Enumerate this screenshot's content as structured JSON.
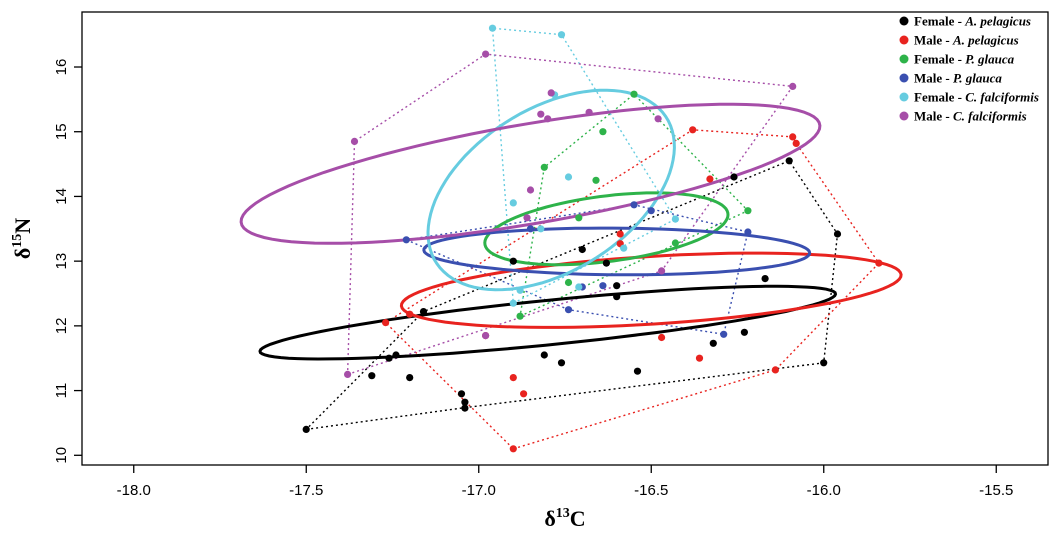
{
  "chart_data": {
    "type": "scatter",
    "title": "",
    "xlabel": "δ13C",
    "ylabel": "δ15N",
    "xlabel_parts": {
      "base": "δ",
      "sup": "13",
      "rest": "C"
    },
    "ylabel_parts": {
      "base": "δ",
      "sup": "15",
      "rest": "N"
    },
    "xlim": [
      -18.15,
      -15.35
    ],
    "ylim": [
      9.85,
      16.85
    ],
    "xticks": [
      -18.0,
      -17.5,
      -17.0,
      -16.5,
      -16.0,
      -15.5
    ],
    "xtick_labels": [
      "-18.0",
      "-17.5",
      "-17.0",
      "-16.5",
      "-16.0",
      "-15.5"
    ],
    "yticks": [
      10,
      11,
      12,
      13,
      14,
      15,
      16
    ],
    "ytick_labels": [
      "10",
      "11",
      "12",
      "13",
      "14",
      "15",
      "16"
    ],
    "grid": false,
    "legend_position": "top-right",
    "series": [
      {
        "name": "Female - A. pelagicus",
        "legend_prefix": "Female - ",
        "legend_italic": "A. pelagicus",
        "color": "#000000",
        "points": [
          [
            -17.5,
            10.4
          ],
          [
            -17.31,
            11.23
          ],
          [
            -17.26,
            11.5
          ],
          [
            -17.24,
            11.55
          ],
          [
            -17.2,
            11.2
          ],
          [
            -17.16,
            12.22
          ],
          [
            -17.05,
            10.95
          ],
          [
            -17.04,
            10.82
          ],
          [
            -17.04,
            10.73
          ],
          [
            -16.9,
            13.0
          ],
          [
            -16.81,
            11.55
          ],
          [
            -16.76,
            11.43
          ],
          [
            -16.7,
            13.18
          ],
          [
            -16.63,
            12.97
          ],
          [
            -16.6,
            12.62
          ],
          [
            -16.6,
            12.45
          ],
          [
            -16.54,
            11.3
          ],
          [
            -16.32,
            11.73
          ],
          [
            -16.26,
            14.3
          ],
          [
            -16.23,
            11.9
          ],
          [
            -16.17,
            12.73
          ],
          [
            -16.1,
            14.55
          ],
          [
            -16.0,
            11.43
          ],
          [
            -15.96,
            13.42
          ]
        ],
        "hull": [
          [
            -17.5,
            10.4
          ],
          [
            -17.05,
            10.73
          ],
          [
            -16.0,
            11.43
          ],
          [
            -15.96,
            13.42
          ],
          [
            -16.1,
            14.55
          ],
          [
            -17.16,
            12.22
          ],
          [
            -17.5,
            10.4
          ]
        ],
        "ellipse": {
          "cx": -16.8,
          "cy": 12.05,
          "rx": 0.96,
          "ry": 0.3,
          "angle_deg": 31.4
        }
      },
      {
        "name": "Male - A. pelagicus",
        "legend_prefix": "Male - ",
        "legend_italic": "A. pelagicus",
        "color": "#e8231f",
        "points": [
          [
            -17.27,
            12.05
          ],
          [
            -17.2,
            12.18
          ],
          [
            -16.98,
            11.85
          ],
          [
            -16.9,
            10.1
          ],
          [
            -16.9,
            11.2
          ],
          [
            -16.87,
            10.95
          ],
          [
            -16.59,
            13.42
          ],
          [
            -16.59,
            13.27
          ],
          [
            -16.47,
            11.82
          ],
          [
            -16.38,
            15.03
          ],
          [
            -16.36,
            11.5
          ],
          [
            -16.33,
            14.27
          ],
          [
            -16.14,
            11.32
          ],
          [
            -16.09,
            14.92
          ],
          [
            -16.08,
            14.82
          ],
          [
            -15.84,
            12.97
          ]
        ],
        "hull": [
          [
            -16.9,
            10.1
          ],
          [
            -16.14,
            11.32
          ],
          [
            -15.84,
            12.97
          ],
          [
            -16.08,
            14.82
          ],
          [
            -16.09,
            14.92
          ],
          [
            -16.38,
            15.03
          ],
          [
            -17.27,
            12.05
          ],
          [
            -16.9,
            10.1
          ]
        ],
        "ellipse": {
          "cx": -16.5,
          "cy": 12.55,
          "rx": 0.79,
          "ry": 0.48,
          "angle_deg": 30.2
        }
      },
      {
        "name": "Female - P. glauca",
        "legend_prefix": "Female - ",
        "legend_italic": "P. glauca",
        "color": "#2eb34a",
        "points": [
          [
            -16.88,
            12.15
          ],
          [
            -16.81,
            14.45
          ],
          [
            -16.74,
            12.67
          ],
          [
            -16.71,
            13.67
          ],
          [
            -16.66,
            14.25
          ],
          [
            -16.64,
            15.0
          ],
          [
            -16.55,
            15.58
          ],
          [
            -16.43,
            13.28
          ],
          [
            -16.22,
            13.78
          ]
        ],
        "hull": [
          [
            -16.88,
            12.15
          ],
          [
            -16.22,
            13.78
          ],
          [
            -16.55,
            15.58
          ],
          [
            -16.81,
            14.45
          ],
          [
            -16.88,
            12.15
          ]
        ],
        "ellipse": {
          "cx": -16.63,
          "cy": 13.5,
          "rx": 0.58,
          "ry": 0.31,
          "angle_deg": 70
        }
      },
      {
        "name": "Male - P. glauca",
        "legend_prefix": "Male - ",
        "legend_italic": "P. glauca",
        "color": "#3a4fb0",
        "points": [
          [
            -17.21,
            13.33
          ],
          [
            -16.85,
            13.5
          ],
          [
            -16.74,
            12.25
          ],
          [
            -16.7,
            12.6
          ],
          [
            -16.64,
            12.62
          ],
          [
            -16.55,
            13.87
          ],
          [
            -16.5,
            13.78
          ],
          [
            -16.29,
            11.87
          ],
          [
            -16.22,
            13.45
          ]
        ],
        "hull": [
          [
            -17.21,
            13.33
          ],
          [
            -16.74,
            12.25
          ],
          [
            -16.29,
            11.87
          ],
          [
            -16.22,
            13.45
          ],
          [
            -16.55,
            13.87
          ],
          [
            -17.21,
            13.33
          ]
        ],
        "ellipse": {
          "cx": -16.6,
          "cy": 13.15,
          "rx": 0.56,
          "ry": 0.36,
          "angle_deg": -4
        }
      },
      {
        "name": "Female - C. falciformis",
        "legend_prefix": "Female - ",
        "legend_italic": "C. falciformis",
        "color": "#66cce0",
        "points": [
          [
            -16.96,
            16.6
          ],
          [
            -16.9,
            13.9
          ],
          [
            -16.9,
            12.35
          ],
          [
            -16.88,
            12.55
          ],
          [
            -16.82,
            13.5
          ],
          [
            -16.78,
            15.57
          ],
          [
            -16.76,
            16.5
          ],
          [
            -16.74,
            14.3
          ],
          [
            -16.71,
            12.6
          ],
          [
            -16.58,
            13.2
          ],
          [
            -16.43,
            13.65
          ]
        ],
        "hull": [
          [
            -16.9,
            12.35
          ],
          [
            -16.43,
            13.65
          ],
          [
            -16.76,
            16.5
          ],
          [
            -16.96,
            16.6
          ],
          [
            -16.9,
            12.35
          ]
        ],
        "ellipse": {
          "cx": -16.79,
          "cy": 14.1,
          "rx": 1.55,
          "ry": 0.32,
          "angle_deg": 84
        }
      },
      {
        "name": "Male - C. falciformis",
        "legend_prefix": "Male - ",
        "legend_italic": "C. falciformis",
        "color": "#a64ea8",
        "points": [
          [
            -17.38,
            11.25
          ],
          [
            -17.36,
            14.85
          ],
          [
            -16.98,
            16.2
          ],
          [
            -16.98,
            11.85
          ],
          [
            -16.86,
            13.67
          ],
          [
            -16.85,
            14.1
          ],
          [
            -16.82,
            15.27
          ],
          [
            -16.8,
            15.2
          ],
          [
            -16.79,
            15.6
          ],
          [
            -16.68,
            15.3
          ],
          [
            -16.48,
            15.2
          ],
          [
            -16.47,
            12.85
          ],
          [
            -16.09,
            15.7
          ]
        ],
        "hull": [
          [
            -17.38,
            11.25
          ],
          [
            -16.47,
            12.85
          ],
          [
            -16.09,
            15.7
          ],
          [
            -16.98,
            16.2
          ],
          [
            -17.36,
            14.85
          ],
          [
            -17.38,
            11.25
          ]
        ],
        "ellipse": {
          "cx": -16.85,
          "cy": 14.35,
          "rx": 1.26,
          "ry": 0.52,
          "angle_deg": 55
        }
      }
    ]
  }
}
